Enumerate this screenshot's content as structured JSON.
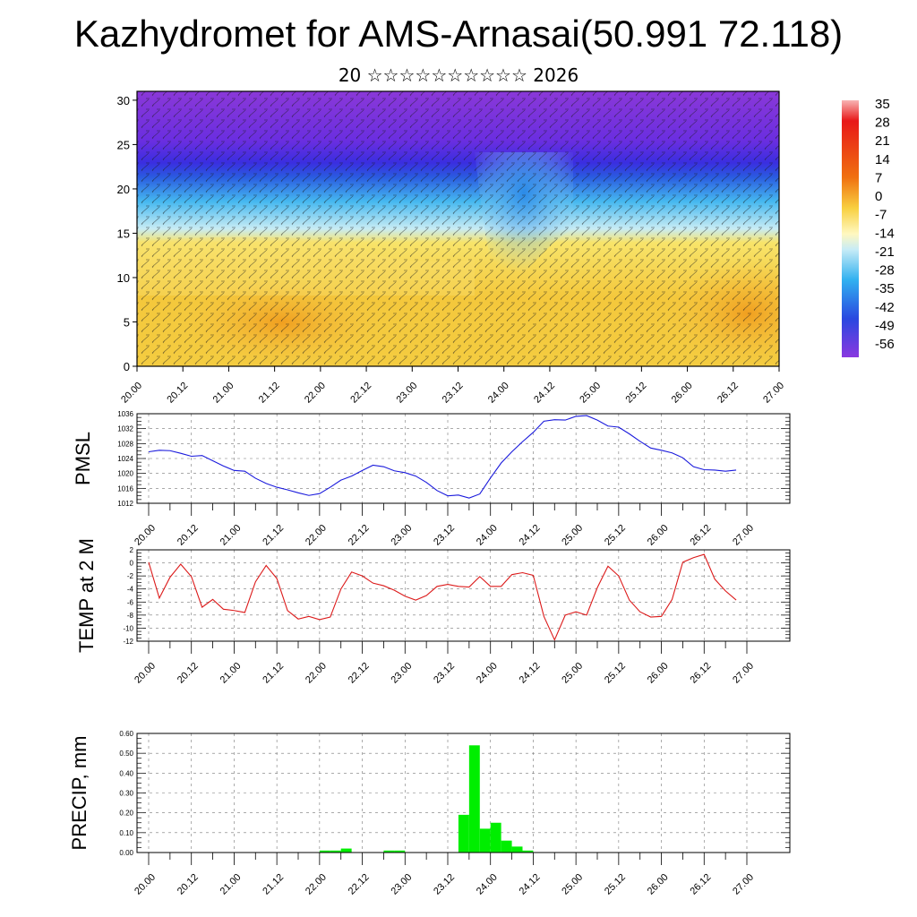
{
  "title": "Kazhydromet for AMS-Arnasai(50.991 72.118)",
  "subtitle": "20 ☆☆☆☆☆☆☆☆☆☆ 2026",
  "time_ticks": [
    "20.00",
    "20.12",
    "21.00",
    "21.12",
    "22.00",
    "22.12",
    "23.00",
    "23.12",
    "24.00",
    "24.12",
    "25.00",
    "25.12",
    "26.00",
    "26.12",
    "27.00"
  ],
  "colorbar": {
    "labels": [
      "35",
      "28",
      "21",
      "14",
      "7",
      "0",
      "-7",
      "-14",
      "-21",
      "-28",
      "-35",
      "-42",
      "-49",
      "-56"
    ]
  },
  "chart_data": [
    {
      "type": "heatmap",
      "name": "cross-section",
      "y_ticks": [
        "0",
        "5",
        "10",
        "15",
        "20",
        "25",
        "30"
      ],
      "ylim": [
        0,
        31
      ],
      "xlim": [
        0,
        14
      ],
      "colorbar_range": [
        -56,
        35
      ],
      "colors": {
        "top": "#7a2bdc",
        "upper": "#5a2ae0",
        "band": "#2a3ad8",
        "mid": "#41b8f0",
        "light": "#b8e4f4",
        "lowyellow": "#f4d44a",
        "warm": "#f0a020"
      }
    },
    {
      "type": "line",
      "name": "pmsl",
      "ylabel": "PMSL",
      "ylim": [
        1012,
        1036
      ],
      "y_ticks": [
        "1036",
        "1032",
        "1028",
        "1024",
        "1020",
        "1016",
        "1012"
      ],
      "color": "#1a1adc",
      "x": [
        0,
        0.25,
        0.5,
        0.75,
        1,
        1.25,
        1.5,
        1.75,
        2,
        2.25,
        2.5,
        2.75,
        3,
        3.25,
        3.5,
        3.75,
        4,
        4.25,
        4.5,
        4.75,
        5,
        5.25,
        5.5,
        5.75,
        6,
        6.25,
        6.5,
        6.75,
        7,
        7.25,
        7.5,
        7.75,
        8,
        8.25,
        8.5,
        8.75,
        9,
        9.25,
        9.5,
        9.75,
        10,
        10.25,
        10.5,
        10.75,
        11,
        11.25,
        11.5,
        11.75,
        12,
        12.25,
        12.5,
        12.75,
        13,
        13.25,
        13.5,
        13.75
      ],
      "values": [
        1025.8,
        1026.2,
        1026.1,
        1025.4,
        1024.6,
        1024.8,
        1023.4,
        1022,
        1020.8,
        1020.6,
        1018.7,
        1017.3,
        1016.3,
        1015.6,
        1014.8,
        1014.1,
        1014.6,
        1016.3,
        1018.2,
        1019.3,
        1020.8,
        1022.2,
        1021.8,
        1020.7,
        1020.2,
        1019.3,
        1017.6,
        1015.4,
        1014,
        1014.2,
        1013.4,
        1014.5,
        1018.8,
        1022.8,
        1025.8,
        1028.5,
        1031,
        1034,
        1034.4,
        1034.3,
        1035.3,
        1035.5,
        1034.3,
        1032.7,
        1032.4,
        1030.6,
        1028.6,
        1026.8,
        1026.2,
        1025.5,
        1024.2,
        1021.8,
        1021,
        1020.9,
        1020.6,
        1020.9
      ]
    },
    {
      "type": "line",
      "name": "temp",
      "ylabel": "TEMP at 2 M",
      "ylim": [
        -12,
        2
      ],
      "y_ticks": [
        "2",
        "0",
        "-2",
        "-4",
        "-6",
        "-8",
        "-10",
        "-12"
      ],
      "color": "#dc1a1a",
      "x": [
        0,
        0.25,
        0.5,
        0.75,
        1,
        1.25,
        1.5,
        1.75,
        2,
        2.25,
        2.5,
        2.75,
        3,
        3.25,
        3.5,
        3.75,
        4,
        4.25,
        4.5,
        4.75,
        5,
        5.25,
        5.5,
        5.75,
        6,
        6.25,
        6.5,
        6.75,
        7,
        7.25,
        7.5,
        7.75,
        8,
        8.25,
        8.5,
        8.75,
        9,
        9.25,
        9.5,
        9.75,
        10,
        10.25,
        10.5,
        10.75,
        11,
        11.25,
        11.5,
        11.75,
        12,
        12.25,
        12.5,
        12.75,
        13,
        13.25,
        13.5,
        13.75
      ],
      "values": [
        0.1,
        -5.4,
        -2.2,
        -0.2,
        -2.1,
        -6.8,
        -5.6,
        -7.1,
        -7.3,
        -7.6,
        -2.9,
        -0.4,
        -2.4,
        -7.3,
        -8.6,
        -8.2,
        -8.7,
        -8.3,
        -4,
        -1.4,
        -2,
        -3.1,
        -3.5,
        -4.2,
        -5.1,
        -5.7,
        -5,
        -3.6,
        -3.3,
        -3.6,
        -3.7,
        -2.1,
        -3.6,
        -3.6,
        -1.8,
        -1.5,
        -1.9,
        -8.2,
        -11.8,
        -8,
        -7.5,
        -8,
        -3.8,
        -0.5,
        -2,
        -5.7,
        -7.5,
        -8.3,
        -8.2,
        -5.6,
        0.1,
        0.8,
        1.3,
        -2.5,
        -4.3,
        -5.7
      ]
    },
    {
      "type": "bar",
      "name": "precip",
      "ylabel": "PRECIP, mm",
      "ylim": [
        0,
        0.6
      ],
      "y_ticks": [
        "0.60",
        "0.50",
        "0.40",
        "0.30",
        "0.20",
        "0.10",
        "0.00"
      ],
      "color": "#00ee00",
      "bar_width": 0.25,
      "x": [
        4,
        4.25,
        4.5,
        5.5,
        5.75,
        7.25,
        7.5,
        7.75,
        8,
        8.25,
        8.5,
        8.75
      ],
      "values": [
        0.01,
        0.01,
        0.02,
        0.01,
        0.01,
        0.19,
        0.54,
        0.12,
        0.15,
        0.06,
        0.03,
        0.01
      ]
    }
  ]
}
